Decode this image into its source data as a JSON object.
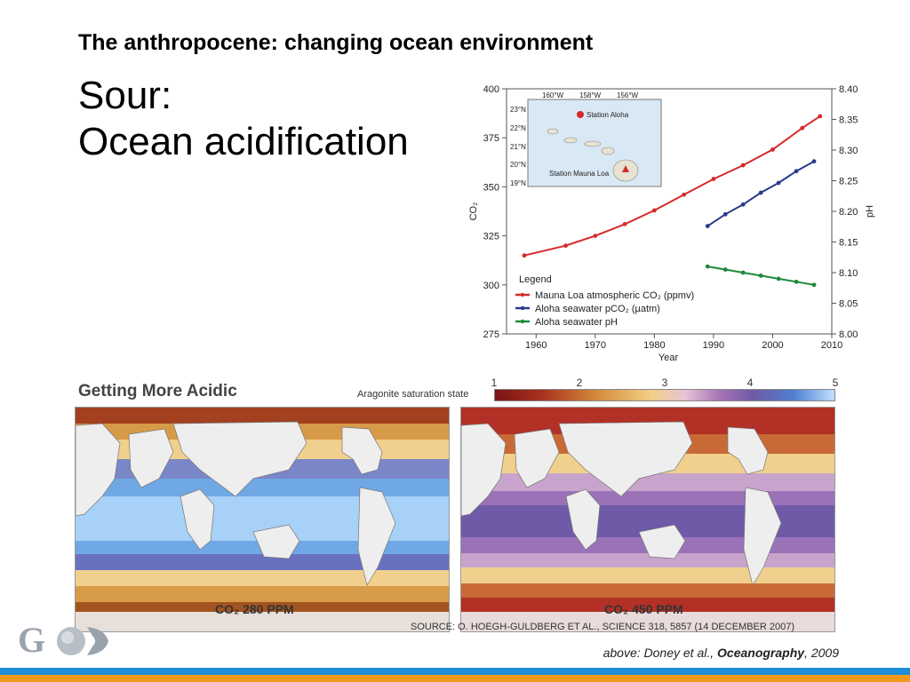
{
  "slide": {
    "title": "The anthropocene: changing ocean environment",
    "subtitle_line1": "Sour:",
    "subtitle_line2": "Ocean acidification"
  },
  "inset": {
    "lon_labels": [
      "160°W",
      "158°W",
      "156°W"
    ],
    "lat_labels": [
      "23°N",
      "22°N",
      "21°N",
      "20°N",
      "19°N"
    ],
    "station_aloha": "Station Aloha",
    "station_mauna_loa": "Station Mauna Loa"
  },
  "legend": {
    "title": "Legend",
    "items": [
      "Mauna Loa atmospheric CO₂ (ppmv)",
      "Aloha seawater pCO₂ (µatm)",
      "Aloha seawater pH"
    ]
  },
  "chart_data": {
    "type": "line",
    "xlabel": "Year",
    "ylabel_left": "CO₂",
    "ylabel_right": "pH",
    "xlim": [
      1955,
      2010
    ],
    "ylim_left": [
      275,
      400
    ],
    "ylim_right": [
      8.0,
      8.4
    ],
    "x_ticks": [
      "1960",
      "1970",
      "1980",
      "1990",
      "2000",
      "2010"
    ],
    "y_ticks_left": [
      "275",
      "300",
      "325",
      "350",
      "375",
      "400"
    ],
    "y_ticks_right": [
      "8.00",
      "8.05",
      "8.10",
      "8.15",
      "8.20",
      "8.25",
      "8.30",
      "8.35",
      "8.40"
    ],
    "series": [
      {
        "name": "Mauna Loa atmospheric CO₂ (ppmv)",
        "axis": "left",
        "color": "#d62a2a",
        "x": [
          1958,
          1965,
          1970,
          1975,
          1980,
          1985,
          1990,
          1995,
          2000,
          2005,
          2008
        ],
        "values": [
          315,
          320,
          325,
          331,
          338,
          346,
          354,
          361,
          369,
          380,
          386
        ]
      },
      {
        "name": "Aloha seawater pCO₂ (µatm)",
        "axis": "left",
        "color": "#2a3a8c",
        "x": [
          1989,
          1992,
          1995,
          1998,
          2001,
          2004,
          2007
        ],
        "values": [
          330,
          336,
          341,
          347,
          352,
          358,
          363
        ]
      },
      {
        "name": "Aloha seawater pH",
        "axis": "right",
        "color": "#1e8a3a",
        "x": [
          1989,
          1992,
          1995,
          1998,
          2001,
          2004,
          2007
        ],
        "values": [
          8.11,
          8.105,
          8.1,
          8.095,
          8.09,
          8.085,
          8.08
        ]
      }
    ]
  },
  "maps": {
    "title": "Getting More Acidic",
    "scale_label": "Aragonite saturation state",
    "scale_ticks": [
      "1",
      "2",
      "3",
      "4",
      "5"
    ],
    "left_caption": "CO₂ 280 PPM",
    "right_caption": "CO₂ 450 PPM",
    "source": "SOURCE: O. HOEGH-GULDBERG ET AL., SCIENCE 318, 5857 (14 DECEMBER 2007)"
  },
  "credit": {
    "prefix": "above: Doney et al., ",
    "journal": "Oceanography",
    "suffix": ", 2009"
  },
  "colors": {
    "co2": "#d62a2a",
    "pco2": "#2a3a8c",
    "ph": "#1e8a3a",
    "footer_blue": "#1e8fd6",
    "footer_orange": "#f39a1c"
  }
}
